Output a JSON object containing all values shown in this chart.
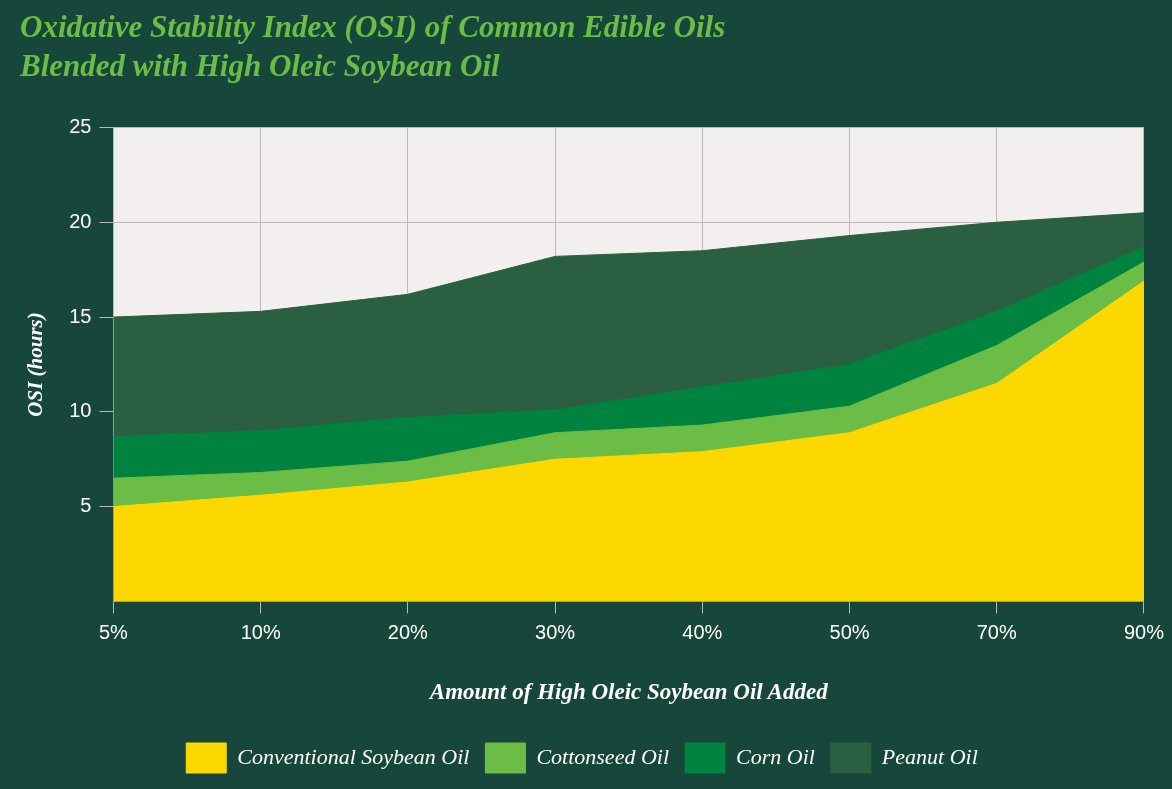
{
  "chart_data": {
    "type": "area",
    "title": [
      "Oxidative Stability Index (OSI) of Common Edible Oils",
      "Blended with High Oleic Soybean Oil"
    ],
    "xlabel": "Amount of High Oleic Soybean Oil Added",
    "ylabel": "OSI (hours)",
    "categories": [
      "5%",
      "10%",
      "20%",
      "30%",
      "40%",
      "50%",
      "70%",
      "90%"
    ],
    "series": [
      {
        "name": "Conventional Soybean Oil",
        "color": "#fdd800",
        "values": [
          5.0,
          5.6,
          6.3,
          7.5,
          7.9,
          8.9,
          11.5,
          16.9
        ]
      },
      {
        "name": "Cottonseed Oil",
        "color": "#6cbd45",
        "values": [
          6.5,
          6.8,
          7.4,
          8.9,
          9.3,
          10.3,
          13.5,
          17.9
        ]
      },
      {
        "name": "Corn Oil",
        "color": "#00833e",
        "values": [
          8.7,
          9.0,
          9.7,
          10.1,
          11.3,
          12.5,
          15.3,
          18.7
        ]
      },
      {
        "name": "Peanut Oil",
        "color": "#2a6041",
        "values": [
          15.0,
          15.3,
          16.2,
          18.2,
          18.5,
          19.3,
          20.0,
          20.5
        ]
      }
    ],
    "ylim": [
      0,
      25
    ],
    "yticks": [
      5,
      10,
      15,
      20,
      25
    ],
    "grid": true,
    "legend": "bottom"
  }
}
